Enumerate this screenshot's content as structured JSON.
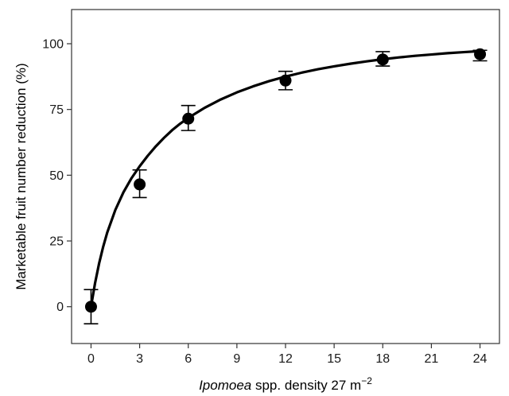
{
  "chart_data": {
    "type": "scatter",
    "title": "",
    "xlabel": {
      "italic_part": "Ipomoea",
      "rest": " spp. density 27 m",
      "superscript": "−2"
    },
    "ylabel": "Marketable fruit number reduction (%)",
    "xlim": [
      -1.2,
      25.2
    ],
    "ylim": [
      -14,
      113
    ],
    "x_ticks": [
      0,
      3,
      6,
      9,
      12,
      15,
      18,
      21,
      24
    ],
    "y_ticks": [
      0,
      25,
      50,
      75,
      100
    ],
    "x_tick_labels": [
      "0",
      "3",
      "6",
      "9",
      "12",
      "15",
      "18",
      "21",
      "24"
    ],
    "y_tick_labels": [
      "0",
      "25",
      "50",
      "75",
      "100"
    ],
    "grid": false,
    "series": [
      {
        "points": [
          {
            "x": 0,
            "y": 0,
            "err_low": -6.5,
            "err_high": 6.5
          },
          {
            "x": 3,
            "y": 46.5,
            "err_low": 41.5,
            "err_high": 52
          },
          {
            "x": 6,
            "y": 71.5,
            "err_low": 67,
            "err_high": 76.5
          },
          {
            "x": 12,
            "y": 86,
            "err_low": 82.5,
            "err_high": 89.5
          },
          {
            "x": 18,
            "y": 94,
            "err_low": 91.5,
            "err_high": 97
          },
          {
            "x": 24,
            "y": 96,
            "err_low": 93.5,
            "err_high": 97.5
          }
        ]
      }
    ],
    "fitted_curve": {
      "x": [
        0,
        0.25,
        0.5,
        0.75,
        1,
        1.5,
        2,
        2.5,
        3,
        3.5,
        4,
        4.5,
        5,
        5.5,
        6,
        7,
        8,
        9,
        10,
        11,
        12,
        13,
        14,
        15,
        16,
        17,
        18,
        19,
        20,
        21,
        22,
        23,
        24
      ],
      "y": [
        0,
        7.1,
        13.2,
        18.6,
        23.3,
        31.2,
        37.6,
        42.8,
        47.2,
        51.0,
        54.2,
        57.0,
        59.5,
        61.7,
        63.6,
        66.9,
        69.6,
        71.9,
        73.8,
        75.4,
        76.8,
        78.1,
        79.1,
        80.1,
        81.0,
        81.8,
        82.5,
        83.1,
        83.7,
        84.2,
        84.7,
        85.1,
        85.5
      ],
      "y_adjusted": [
        0,
        9.0,
        16.5,
        22.8,
        28.2,
        36.8,
        43.5,
        48.9,
        53.4,
        57.4,
        61.0,
        64.2,
        67.1,
        69.6,
        71.8,
        75.6,
        78.8,
        81.5,
        83.8,
        85.8,
        87.5,
        89.0,
        90.3,
        91.4,
        92.4,
        93.3,
        94.1,
        94.8,
        95.4,
        95.9,
        96.4,
        96.8,
        97.2
      ]
    }
  }
}
